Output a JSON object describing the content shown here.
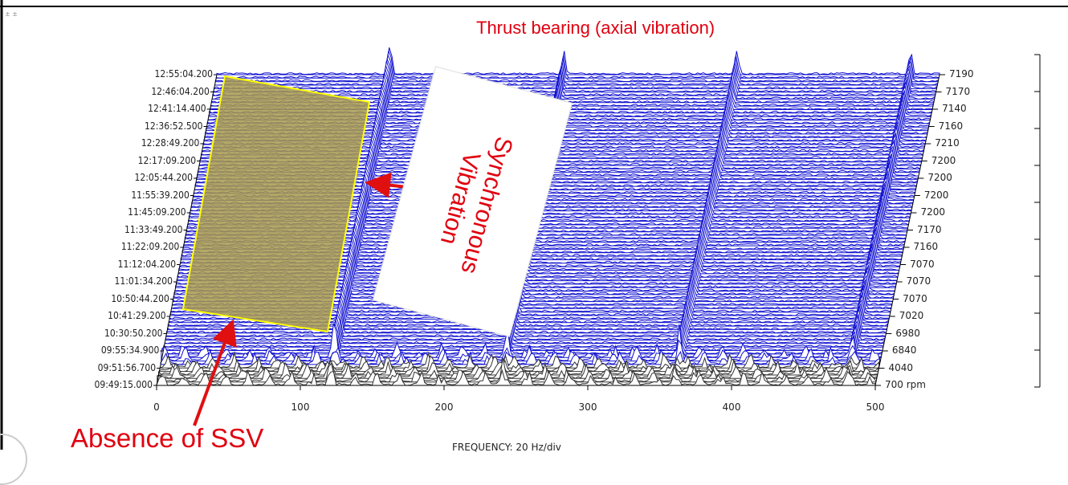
{
  "chart_data": {
    "type": "waterfall",
    "title": "",
    "xlabel": "FREQUENCY: 20 Hz/div",
    "x_range": [
      0,
      500
    ],
    "x_ticks": [
      0,
      100,
      200,
      300,
      400,
      500
    ],
    "timestamps": [
      "12:55:04.200",
      "12:46:04.200",
      "12:41:14.400",
      "12:36:52.500",
      "12:28:49.200",
      "12:17:09.200",
      "12:05:44.200",
      "11:55:39.200",
      "11:45:09.200",
      "11:33:49.200",
      "11:22:09.200",
      "11:12:04.200",
      "11:01:34.200",
      "10:50:44.200",
      "10:41:29.200",
      "10:30:50.200",
      "09:55:34.900",
      "09:51:56.700",
      "09:49:15.000"
    ],
    "rpm_values": [
      "7190",
      "7170",
      "7140",
      "7160",
      "7210",
      "7200",
      "7200",
      "7200",
      "7200",
      "7170",
      "7160",
      "7070",
      "7070",
      "7070",
      "7020",
      "6980",
      "6840",
      "4040",
      "700 rpm"
    ],
    "dominant_peaks_hz": [
      120,
      240,
      360,
      480
    ],
    "colors": {
      "trace": "#1010d0",
      "fill": "#ffffff",
      "highlight": "#a89a4e",
      "highlight_border": "#ffff00",
      "annotation": "#e0000f",
      "arrow": "#e01010"
    }
  },
  "annotations": {
    "thrust": "Thrust bearing (axial vibration)",
    "synchronous": "Synchronous Vibration",
    "ssv": "Absence of SSV"
  },
  "ui": {
    "scroll_marks": "± ±"
  }
}
